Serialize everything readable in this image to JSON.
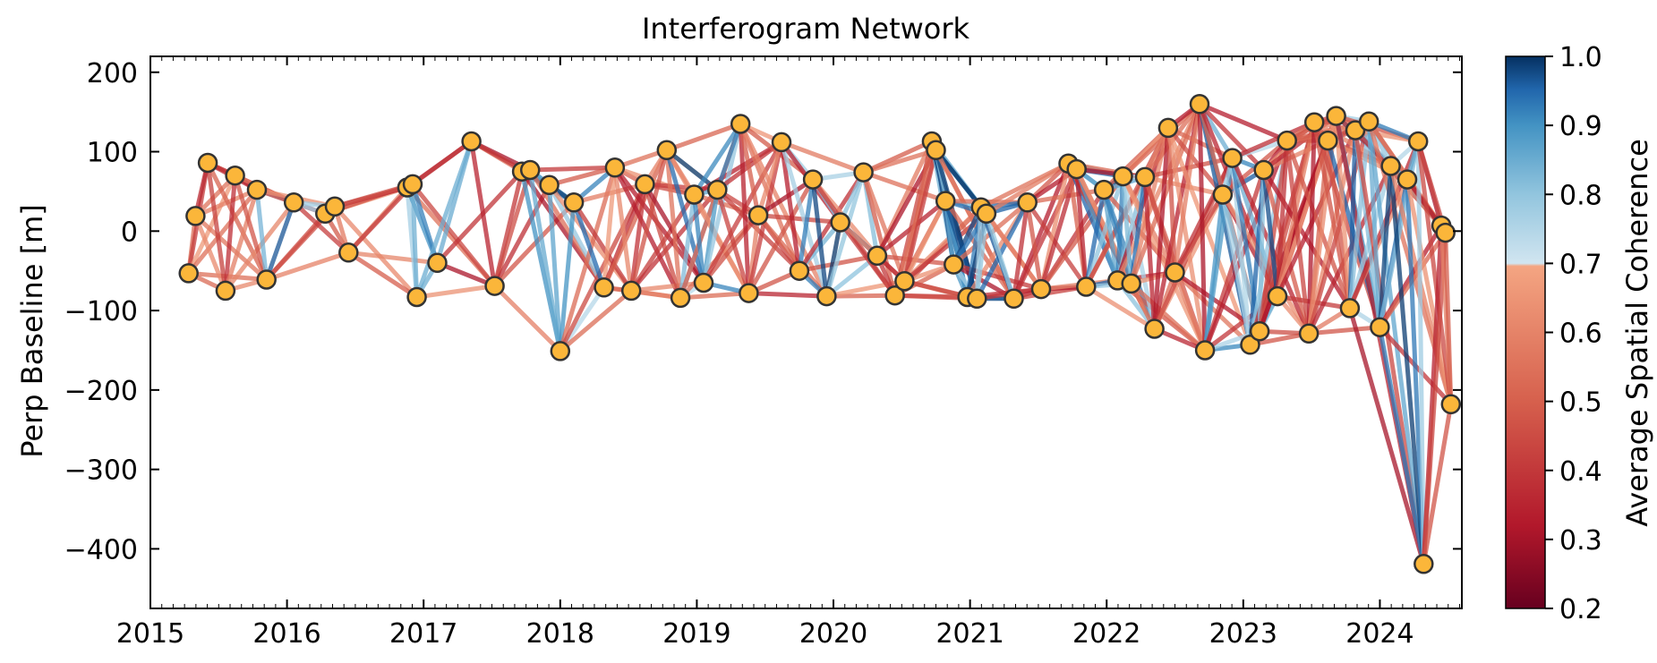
{
  "chart_data": {
    "type": "network",
    "title": "Interferogram Network",
    "xlabel": "",
    "ylabel": "Perp Baseline [m]",
    "xlim": [
      2015.0,
      2024.6
    ],
    "ylim": [
      -475,
      220
    ],
    "x_ticks": [
      "2015",
      "2016",
      "2017",
      "2018",
      "2019",
      "2020",
      "2021",
      "2022",
      "2023",
      "2024"
    ],
    "y_ticks": [
      "200",
      "100",
      "0",
      "−100",
      "−200",
      "−300",
      "−400"
    ],
    "y_tick_values": [
      200,
      100,
      0,
      -100,
      -200,
      -300,
      -400
    ],
    "colorbar": {
      "label": "Average Spatial Coherence",
      "range": [
        0.2,
        1.0
      ],
      "ticks": [
        "1.0",
        "0.9",
        "0.8",
        "0.7",
        "0.6",
        "0.5",
        "0.4",
        "0.3",
        "0.2"
      ],
      "tick_values": [
        1.0,
        0.9,
        0.8,
        0.7,
        0.6,
        0.5,
        0.4,
        0.3,
        0.2
      ],
      "threshold": 0.7
    },
    "acquisitions": [
      {
        "t": 2015.28,
        "b": -53
      },
      {
        "t": 2015.33,
        "b": 19
      },
      {
        "t": 2015.42,
        "b": 86
      },
      {
        "t": 2015.55,
        "b": -75
      },
      {
        "t": 2015.62,
        "b": 70
      },
      {
        "t": 2015.78,
        "b": 52
      },
      {
        "t": 2015.85,
        "b": -61
      },
      {
        "t": 2016.05,
        "b": 36
      },
      {
        "t": 2016.28,
        "b": 22
      },
      {
        "t": 2016.35,
        "b": 31
      },
      {
        "t": 2016.45,
        "b": -27
      },
      {
        "t": 2016.88,
        "b": 55
      },
      {
        "t": 2016.92,
        "b": 59
      },
      {
        "t": 2016.95,
        "b": -83
      },
      {
        "t": 2017.1,
        "b": -40
      },
      {
        "t": 2017.35,
        "b": 113
      },
      {
        "t": 2017.52,
        "b": -69
      },
      {
        "t": 2017.72,
        "b": 75
      },
      {
        "t": 2017.78,
        "b": 77
      },
      {
        "t": 2017.92,
        "b": 58
      },
      {
        "t": 2018.0,
        "b": -151
      },
      {
        "t": 2018.1,
        "b": 36
      },
      {
        "t": 2018.32,
        "b": -71
      },
      {
        "t": 2018.4,
        "b": 80
      },
      {
        "t": 2018.52,
        "b": -75
      },
      {
        "t": 2018.62,
        "b": 59
      },
      {
        "t": 2018.78,
        "b": 102
      },
      {
        "t": 2018.88,
        "b": -84
      },
      {
        "t": 2018.98,
        "b": 46
      },
      {
        "t": 2019.05,
        "b": -65
      },
      {
        "t": 2019.15,
        "b": 52
      },
      {
        "t": 2019.32,
        "b": 135
      },
      {
        "t": 2019.38,
        "b": -78
      },
      {
        "t": 2019.45,
        "b": 20
      },
      {
        "t": 2019.62,
        "b": 112
      },
      {
        "t": 2019.75,
        "b": -50
      },
      {
        "t": 2019.85,
        "b": 65
      },
      {
        "t": 2019.95,
        "b": -82
      },
      {
        "t": 2020.05,
        "b": 11
      },
      {
        "t": 2020.22,
        "b": 74
      },
      {
        "t": 2020.32,
        "b": -31
      },
      {
        "t": 2020.45,
        "b": -81
      },
      {
        "t": 2020.52,
        "b": -63
      },
      {
        "t": 2020.72,
        "b": 113
      },
      {
        "t": 2020.75,
        "b": 102
      },
      {
        "t": 2020.82,
        "b": 38
      },
      {
        "t": 2020.88,
        "b": -42
      },
      {
        "t": 2020.98,
        "b": -83
      },
      {
        "t": 2021.05,
        "b": -85
      },
      {
        "t": 2021.08,
        "b": 30
      },
      {
        "t": 2021.12,
        "b": 22
      },
      {
        "t": 2021.32,
        "b": -85
      },
      {
        "t": 2021.42,
        "b": 36
      },
      {
        "t": 2021.52,
        "b": -73
      },
      {
        "t": 2021.72,
        "b": 85
      },
      {
        "t": 2021.78,
        "b": 78
      },
      {
        "t": 2021.85,
        "b": -70
      },
      {
        "t": 2021.98,
        "b": 52
      },
      {
        "t": 2022.08,
        "b": -62
      },
      {
        "t": 2022.12,
        "b": 69
      },
      {
        "t": 2022.18,
        "b": -66
      },
      {
        "t": 2022.28,
        "b": 68
      },
      {
        "t": 2022.35,
        "b": -123
      },
      {
        "t": 2022.45,
        "b": 130
      },
      {
        "t": 2022.5,
        "b": -52
      },
      {
        "t": 2022.68,
        "b": 160
      },
      {
        "t": 2022.72,
        "b": -150
      },
      {
        "t": 2022.85,
        "b": 46
      },
      {
        "t": 2022.92,
        "b": 92
      },
      {
        "t": 2023.05,
        "b": -143
      },
      {
        "t": 2023.12,
        "b": -126
      },
      {
        "t": 2023.15,
        "b": 77
      },
      {
        "t": 2023.25,
        "b": -82
      },
      {
        "t": 2023.32,
        "b": 114
      },
      {
        "t": 2023.48,
        "b": -129
      },
      {
        "t": 2023.52,
        "b": 137
      },
      {
        "t": 2023.62,
        "b": 114
      },
      {
        "t": 2023.68,
        "b": 145
      },
      {
        "t": 2023.78,
        "b": -97
      },
      {
        "t": 2023.82,
        "b": 127
      },
      {
        "t": 2023.92,
        "b": 138
      },
      {
        "t": 2024.0,
        "b": -121
      },
      {
        "t": 2024.08,
        "b": 82
      },
      {
        "t": 2024.2,
        "b": 65
      },
      {
        "t": 2024.28,
        "b": 113
      },
      {
        "t": 2024.32,
        "b": -419
      },
      {
        "t": 2024.45,
        "b": 7
      },
      {
        "t": 2024.48,
        "b": -2
      },
      {
        "t": 2024.52,
        "b": -218
      }
    ]
  }
}
